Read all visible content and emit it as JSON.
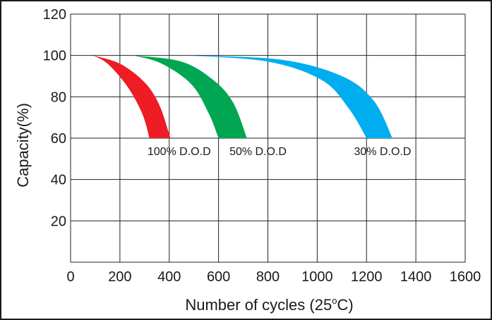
{
  "chart_data": {
    "type": "area",
    "title": "",
    "xlabel": "Number of cycles (25",
    "xlabel_unit_sup": "o",
    "xlabel_unit_tail": "C)",
    "ylabel": "Capacity(%)",
    "xlim": [
      0,
      1600
    ],
    "ylim": [
      0,
      120
    ],
    "x_ticks": [
      "0",
      "200",
      "400",
      "600",
      "800",
      "1000",
      "1200",
      "1400",
      "1600"
    ],
    "y_ticks": [
      "20",
      "40",
      "60",
      "80",
      "100",
      "120"
    ],
    "grid": true,
    "series": [
      {
        "name": "100% D.O.D",
        "color": "#ee1c24",
        "upper": [
          [
            90,
            100
          ],
          [
            200,
            96
          ],
          [
            300,
            87
          ],
          [
            360,
            76
          ],
          [
            405,
            60
          ]
        ],
        "lower": [
          [
            90,
            100
          ],
          [
            150,
            96
          ],
          [
            230,
            85
          ],
          [
            290,
            72
          ],
          [
            320,
            60
          ]
        ],
        "label_at": [
          440,
          60
        ]
      },
      {
        "name": "50% D.O.D",
        "color": "#00a651",
        "upper": [
          [
            255,
            100
          ],
          [
            450,
            97
          ],
          [
            580,
            88
          ],
          [
            660,
            77
          ],
          [
            715,
            60
          ]
        ],
        "lower": [
          [
            255,
            100
          ],
          [
            370,
            96
          ],
          [
            490,
            86
          ],
          [
            560,
            72
          ],
          [
            600,
            60
          ]
        ],
        "label_at": [
          760,
          60
        ]
      },
      {
        "name": "30% D.O.D",
        "color": "#00aeef",
        "upper": [
          [
            470,
            100
          ],
          [
            850,
            98
          ],
          [
            1100,
            90
          ],
          [
            1230,
            78
          ],
          [
            1305,
            60
          ]
        ],
        "lower": [
          [
            470,
            100
          ],
          [
            800,
            97
          ],
          [
            1020,
            88
          ],
          [
            1130,
            74
          ],
          [
            1200,
            60
          ]
        ],
        "label_at": [
          1265,
          60
        ]
      }
    ]
  }
}
